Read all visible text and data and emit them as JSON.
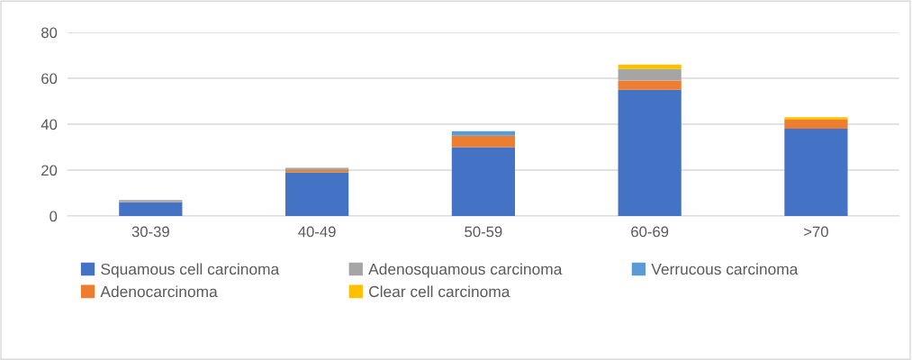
{
  "chart_data": {
    "type": "bar",
    "stacked": true,
    "categories": [
      "30-39",
      "40-49",
      "50-59",
      "60-69",
      ">70"
    ],
    "series": [
      {
        "name": "Squamous cell carcinoma",
        "color": "#4472c4",
        "values": [
          6,
          19,
          30,
          55,
          38
        ]
      },
      {
        "name": "Adenocarcinoma",
        "color": "#ed7d31",
        "values": [
          0,
          1,
          5,
          4,
          4
        ]
      },
      {
        "name": "Adenosquamous carcinoma",
        "color": "#a5a5a5",
        "values": [
          1,
          1,
          0,
          5,
          0
        ]
      },
      {
        "name": "Clear cell carcinoma",
        "color": "#ffc000",
        "values": [
          0,
          0,
          0,
          2,
          1
        ]
      },
      {
        "name": "Verrucous carcinoma",
        "color": "#5b9bd5",
        "values": [
          0,
          0,
          2,
          0,
          0
        ]
      }
    ],
    "ylim": [
      0,
      80
    ],
    "yticks": [
      0,
      20,
      40,
      60,
      80
    ],
    "grid": "y",
    "legend": "bottom"
  }
}
